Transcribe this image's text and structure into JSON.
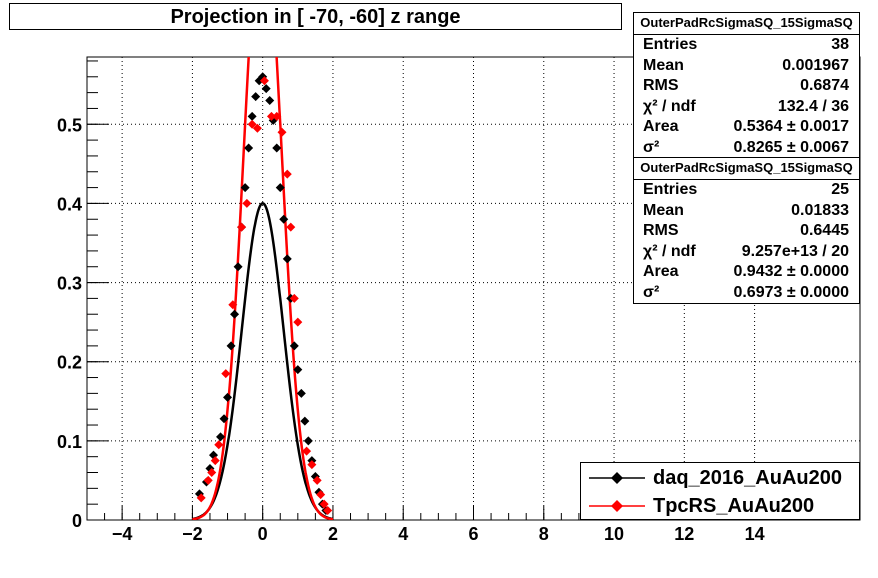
{
  "title": "Projection in [ -70, -60] z range",
  "colors": {
    "daq": "#000000",
    "tpc": "#ff0000",
    "grid": "#000000"
  },
  "stats": [
    {
      "header": "OuterPadRcSigmaSQ_15SigmaSQ",
      "rows": [
        {
          "key": "Entries",
          "value": "38"
        },
        {
          "key": "Mean",
          "value": "0.001967"
        },
        {
          "key": "RMS",
          "value": "0.6874"
        },
        {
          "key": "χ² / ndf",
          "value": "132.4 / 36"
        },
        {
          "key": "Area",
          "value": "0.5364 ± 0.0017"
        },
        {
          "key": "σ²",
          "value": "0.8265 ± 0.0067"
        }
      ]
    },
    {
      "header": "OuterPadRcSigmaSQ_15SigmaSQ",
      "rows": [
        {
          "key": "Entries",
          "value": "25"
        },
        {
          "key": "Mean",
          "value": "0.01833"
        },
        {
          "key": "RMS",
          "value": "0.6445"
        },
        {
          "key": "χ² / ndf",
          "value": "9.257e+13 / 20"
        },
        {
          "key": "Area",
          "value": "0.9432 ± 0.0000"
        },
        {
          "key": "σ²",
          "value": "0.6973 ± 0.0000"
        }
      ]
    }
  ],
  "legend": [
    {
      "label": "daq_2016_AuAu200",
      "color": "#000000"
    },
    {
      "label": "TpcRS_AuAu200",
      "color": "#ff0000"
    }
  ],
  "chart_data": {
    "type": "scatter",
    "title": "Projection in [ -70, -60] z range",
    "xlim": [
      -5,
      17
    ],
    "ylim": [
      0,
      0.585
    ],
    "x_ticks": [
      -4,
      -2,
      0,
      2,
      4,
      6,
      8,
      10,
      12,
      14
    ],
    "y_ticks": [
      0,
      0.1,
      0.2,
      0.3,
      0.4,
      0.5
    ],
    "grid": true,
    "legend_position": "bottom-right",
    "series": [
      {
        "name": "daq_2016_AuAu200",
        "color": "#000000",
        "fit": {
          "type": "gaussian",
          "amplitude": 0.5364,
          "sigma2": 0.8265
        },
        "points": [
          [
            -1.8,
            0.033
          ],
          [
            -1.6,
            0.048
          ],
          [
            -1.5,
            0.065
          ],
          [
            -1.4,
            0.082
          ],
          [
            -1.2,
            0.105
          ],
          [
            -1.1,
            0.128
          ],
          [
            -1.0,
            0.155
          ],
          [
            -0.9,
            0.22
          ],
          [
            -0.8,
            0.26
          ],
          [
            -0.7,
            0.32
          ],
          [
            -0.6,
            0.37
          ],
          [
            -0.5,
            0.42
          ],
          [
            -0.4,
            0.47
          ],
          [
            -0.3,
            0.51
          ],
          [
            -0.2,
            0.535
          ],
          [
            -0.1,
            0.555
          ],
          [
            0.0,
            0.56
          ],
          [
            0.1,
            0.545
          ],
          [
            0.2,
            0.53
          ],
          [
            0.3,
            0.505
          ],
          [
            0.4,
            0.47
          ],
          [
            0.5,
            0.42
          ],
          [
            0.6,
            0.38
          ],
          [
            0.7,
            0.33
          ],
          [
            0.8,
            0.28
          ],
          [
            0.9,
            0.22
          ],
          [
            1.0,
            0.19
          ],
          [
            1.1,
            0.16
          ],
          [
            1.2,
            0.125
          ],
          [
            1.3,
            0.1
          ],
          [
            1.4,
            0.075
          ],
          [
            1.5,
            0.055
          ],
          [
            1.6,
            0.035
          ],
          [
            1.7,
            0.02
          ],
          [
            1.8,
            0.012
          ]
        ]
      },
      {
        "name": "TpcRS_AuAu200",
        "color": "#ff0000",
        "fit": {
          "type": "gaussian",
          "amplitude": 0.9432,
          "sigma2": 0.6973
        },
        "points": [
          [
            -1.75,
            0.028
          ],
          [
            -1.55,
            0.05
          ],
          [
            -1.45,
            0.06
          ],
          [
            -1.35,
            0.075
          ],
          [
            -1.25,
            0.095
          ],
          [
            -1.05,
            0.185
          ],
          [
            -0.85,
            0.272
          ],
          [
            -0.6,
            0.37
          ],
          [
            -0.45,
            0.4
          ],
          [
            -0.3,
            0.5
          ],
          [
            -0.15,
            0.495
          ],
          [
            0.05,
            0.555
          ],
          [
            0.25,
            0.51
          ],
          [
            0.4,
            0.51
          ],
          [
            0.55,
            0.49
          ],
          [
            0.7,
            0.437
          ],
          [
            0.8,
            0.37
          ],
          [
            0.9,
            0.28
          ],
          [
            1.0,
            0.25
          ],
          [
            1.25,
            0.087
          ],
          [
            1.4,
            0.07
          ],
          [
            1.55,
            0.05
          ],
          [
            1.65,
            0.032
          ],
          [
            1.75,
            0.02
          ],
          [
            1.85,
            0.012
          ]
        ]
      }
    ]
  }
}
